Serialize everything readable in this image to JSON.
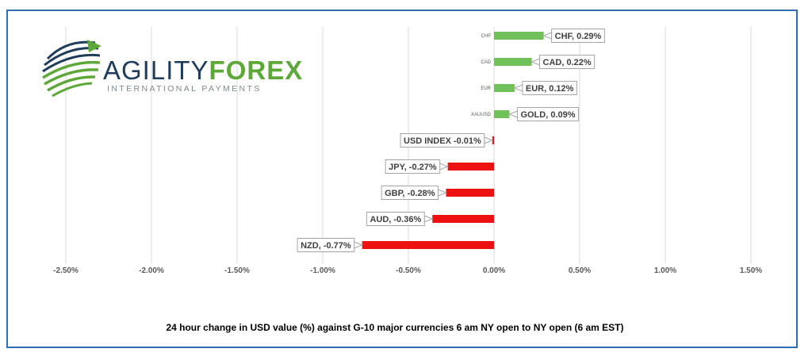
{
  "logo": {
    "word1": "AGILITY",
    "word2": "FOREX",
    "tagline": "INTERNATIONAL PAYMENTS",
    "colors": {
      "dark": "#1f3d5a",
      "green": "#5ea83a",
      "grey": "#7f8a8f"
    }
  },
  "caption": "24 hour change in  USD value (%)  against  G-10 major currencies  6 am NY open to NY open  (6 am EST)",
  "chart_data": {
    "type": "bar",
    "orientation": "horizontal",
    "categories": [
      "CHF",
      "CAD",
      "EUR",
      "XAUUSD",
      "",
      "",
      "",
      "",
      ""
    ],
    "values": [
      0.29,
      0.22,
      0.12,
      0.09,
      -0.01,
      -0.27,
      -0.28,
      -0.36,
      -0.77
    ],
    "data_labels": [
      "CHF, 0.29%",
      "CAD, 0.22%",
      "EUR, 0.12%",
      "GOLD, 0.09%",
      "USD INDEX -0.01%",
      "JPY, -0.27%",
      "GBP, -0.28%",
      "AUD, -0.36%",
      "NZD, -0.77%"
    ],
    "xlim": [
      -2.5,
      1.5
    ],
    "xticks": [
      -2.5,
      -2.0,
      -1.5,
      -1.0,
      -0.5,
      0.0,
      0.5,
      1.0,
      1.5
    ],
    "xtick_labels": [
      "-2.50%",
      "-2.00%",
      "-1.50%",
      "-1.00%",
      "-0.50%",
      "0.00%",
      "0.50%",
      "1.00%",
      "1.50%"
    ],
    "grid": "vertical",
    "colors": {
      "positive": "#70c15a",
      "negative": "#ee1111",
      "grid": "#d9d9d9"
    }
  }
}
